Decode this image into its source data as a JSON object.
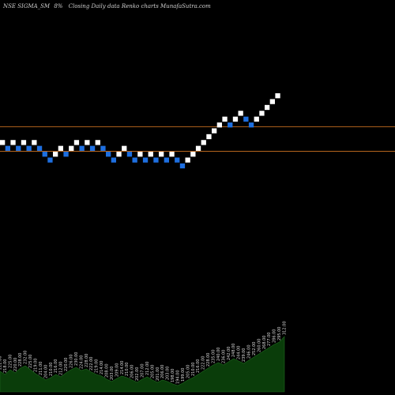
{
  "header": {
    "symbol": "NSE SIGMA_SM",
    "box_size": "8%",
    "chart_desc": "Closing Daily data  Renko  charts MunafaSutra.com"
  },
  "colors": {
    "background": "#000000",
    "up_brick": "#ffffff",
    "down_brick": "#1e6fe0",
    "reference_line": "#b5651d",
    "volume_area": "#0a3d0a"
  },
  "chart_data": {
    "type": "renko",
    "box_size_percent": 8,
    "bricks": [
      {
        "dir": "up",
        "level": 5
      },
      {
        "dir": "down",
        "level": 4
      },
      {
        "dir": "up",
        "level": 5
      },
      {
        "dir": "down",
        "level": 4
      },
      {
        "dir": "up",
        "level": 5
      },
      {
        "dir": "down",
        "level": 4
      },
      {
        "dir": "up",
        "level": 5
      },
      {
        "dir": "down",
        "level": 4
      },
      {
        "dir": "down",
        "level": 3
      },
      {
        "dir": "down",
        "level": 2
      },
      {
        "dir": "up",
        "level": 3
      },
      {
        "dir": "up",
        "level": 4
      },
      {
        "dir": "down",
        "level": 3
      },
      {
        "dir": "up",
        "level": 4
      },
      {
        "dir": "up",
        "level": 5
      },
      {
        "dir": "down",
        "level": 4
      },
      {
        "dir": "up",
        "level": 5
      },
      {
        "dir": "down",
        "level": 4
      },
      {
        "dir": "up",
        "level": 5
      },
      {
        "dir": "down",
        "level": 4
      },
      {
        "dir": "down",
        "level": 3
      },
      {
        "dir": "down",
        "level": 2
      },
      {
        "dir": "up",
        "level": 3
      },
      {
        "dir": "up",
        "level": 4
      },
      {
        "dir": "down",
        "level": 3
      },
      {
        "dir": "down",
        "level": 2
      },
      {
        "dir": "up",
        "level": 3
      },
      {
        "dir": "down",
        "level": 2
      },
      {
        "dir": "up",
        "level": 3
      },
      {
        "dir": "down",
        "level": 2
      },
      {
        "dir": "up",
        "level": 3
      },
      {
        "dir": "down",
        "level": 2
      },
      {
        "dir": "up",
        "level": 3
      },
      {
        "dir": "down",
        "level": 2
      },
      {
        "dir": "down",
        "level": 1
      },
      {
        "dir": "up",
        "level": 2
      },
      {
        "dir": "up",
        "level": 3
      },
      {
        "dir": "up",
        "level": 4
      },
      {
        "dir": "up",
        "level": 5
      },
      {
        "dir": "up",
        "level": 6
      },
      {
        "dir": "up",
        "level": 7
      },
      {
        "dir": "up",
        "level": 8
      },
      {
        "dir": "up",
        "level": 9
      },
      {
        "dir": "down",
        "level": 8
      },
      {
        "dir": "up",
        "level": 9
      },
      {
        "dir": "up",
        "level": 10
      },
      {
        "dir": "down",
        "level": 9
      },
      {
        "dir": "down",
        "level": 8
      },
      {
        "dir": "up",
        "level": 9
      },
      {
        "dir": "up",
        "level": 10
      },
      {
        "dir": "up",
        "level": 11
      },
      {
        "dir": "up",
        "level": 12
      },
      {
        "dir": "up",
        "level": 13
      }
    ],
    "reference_lines": [
      7.7,
      3.5
    ],
    "volume_labels": [
      "222.00",
      "218.00",
      "225.00",
      "220.00",
      "228.00",
      "232.00",
      "225.00",
      "219.00",
      "211.00",
      "204.00",
      "210.00",
      "216.00",
      "212.00",
      "220.00",
      "226.00",
      "230.00",
      "224.00",
      "228.00",
      "222.00",
      "219.00",
      "214.00",
      "208.00",
      "203.00",
      "209.00",
      "214.00",
      "210.00",
      "206.00",
      "202.00",
      "207.00",
      "212.00",
      "205.00",
      "201.00",
      "206.00",
      "203.00",
      "198.00",
      "194.00",
      "199.00",
      "205.00",
      "210.00",
      "216.00",
      "222.00",
      "228.00",
      "235.00",
      "240.00",
      "236.00",
      "242.00",
      "248.00",
      "244.00",
      "239.00",
      "246.00",
      "252.00",
      "260.00",
      "268.00",
      "277.00",
      "286.00",
      "295.00",
      "312.00"
    ],
    "volume_values": [
      26,
      22,
      28,
      24,
      30,
      33,
      28,
      23,
      19,
      15,
      18,
      22,
      19,
      24,
      28,
      31,
      27,
      29,
      25,
      22,
      20,
      16,
      13,
      17,
      20,
      18,
      15,
      12,
      16,
      19,
      15,
      12,
      15,
      13,
      10,
      8,
      11,
      15,
      18,
      22,
      26,
      30,
      34,
      37,
      34,
      38,
      42,
      39,
      36,
      40,
      44,
      48,
      52,
      56,
      60,
      63,
      70
    ]
  }
}
